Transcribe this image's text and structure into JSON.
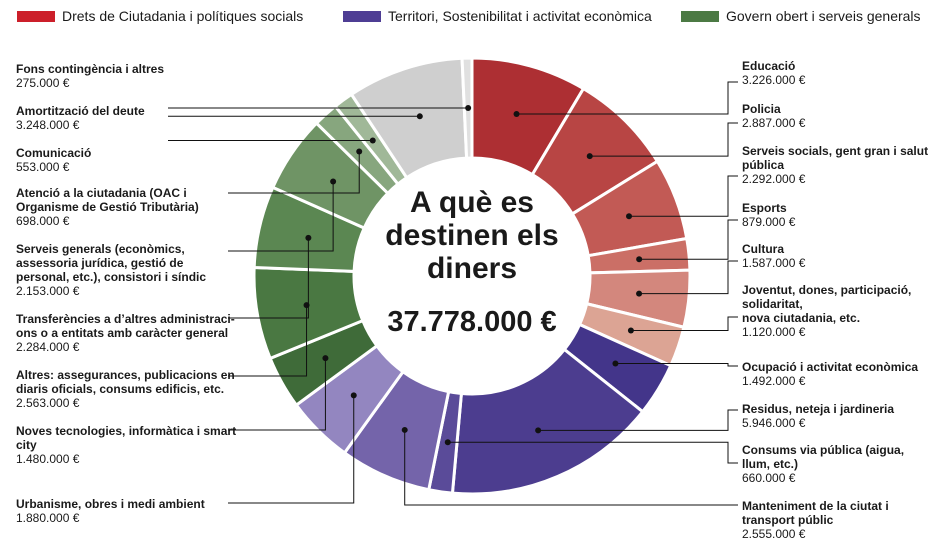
{
  "legend": [
    {
      "label": "Drets de Ciutadania i polítiques socials",
      "color": "#cc1f2a"
    },
    {
      "label": "Territori, Sostenibilitat i activitat econòmica",
      "color": "#4e3d94"
    },
    {
      "label": "Govern obert i serveis generals",
      "color": "#4c7a44"
    }
  ],
  "center": {
    "title_lines": [
      "A què es",
      "destinen els",
      "diners"
    ],
    "total": "37.778.000 €"
  },
  "chart_data": {
    "type": "pie",
    "variant": "donut",
    "unit": "€",
    "total": "37.778.000 €",
    "groups": [
      "Drets de Ciutadania i polítiques socials",
      "Territori, Sostenibilitat i activitat econòmica",
      "Govern obert i serveis generals"
    ],
    "slices": [
      {
        "name": "Educació",
        "label_lines": [
          "Educació"
        ],
        "value": 3226000,
        "value_label": "3.226.000 €",
        "group": 0,
        "color": "#ad2f33"
      },
      {
        "name": "Policia",
        "label_lines": [
          "Policia"
        ],
        "value": 2887000,
        "value_label": "2.887.000 €",
        "group": 0,
        "color": "#b84544"
      },
      {
        "name": "Serveis socials, gent gran i salut pública",
        "label_lines": [
          "Serveis socials, gent gran i salut",
          "pública"
        ],
        "value": 2292000,
        "value_label": "2.292.000 €",
        "group": 0,
        "color": "#c25a55"
      },
      {
        "name": "Esports",
        "label_lines": [
          "Esports"
        ],
        "value": 879000,
        "value_label": "879.000 €",
        "group": 0,
        "color": "#cb6f66"
      },
      {
        "name": "Cultura",
        "label_lines": [
          "Cultura"
        ],
        "value": 1587000,
        "value_label": "1.587.000 €",
        "group": 0,
        "color": "#d3877d"
      },
      {
        "name": "Joventut, dones, participació, solidaritat, nova ciutadania, etc.",
        "label_lines": [
          "Joventut, dones, participació,",
          "solidaritat,",
          "nova ciutadania, etc."
        ],
        "value": 1120000,
        "value_label": "1.120.000 €",
        "group": 0,
        "color": "#dca494"
      },
      {
        "name": "Ocupació i activitat econòmica",
        "label_lines": [
          "Ocupació i activitat econòmica"
        ],
        "value": 1492000,
        "value_label": "1.492.000 €",
        "group": 1,
        "color": "#43358a"
      },
      {
        "name": "Residus, neteja i jardineria",
        "label_lines": [
          "Residus, neteja i jardineria"
        ],
        "value": 5946000,
        "value_label": "5.946.000 €",
        "group": 1,
        "color": "#4c3d8f"
      },
      {
        "name": "Consums via pública (aigua, llum, etc.)",
        "label_lines": [
          "Consums via pública (aigua,",
          "llum, etc.)"
        ],
        "value": 660000,
        "value_label": "660.000 €",
        "group": 1,
        "color": "#5a4b99"
      },
      {
        "name": "Manteniment de la ciutat i transport públic",
        "label_lines": [
          "Manteniment de la ciutat i",
          "transport públic"
        ],
        "value": 2555000,
        "value_label": "2.555.000 €",
        "group": 1,
        "color": "#7464aa"
      },
      {
        "name": "Urbanisme, obres i medi ambient",
        "label_lines": [
          "Urbanisme, obres i medi ambient"
        ],
        "value": 1880000,
        "value_label": "1.880.000 €",
        "group": 1,
        "color": "#9386c0"
      },
      {
        "name": "Noves tecnologies, informàtica i smart city",
        "label_lines": [
          "Noves tecnologies, informàtica i smart",
          "city"
        ],
        "value": 1480000,
        "value_label": "1.480.000 €",
        "group": 2,
        "color": "#3f6b39"
      },
      {
        "name": "Altres: assegurances, publicacions en diaris oficials, consums edificis, etc.",
        "label_lines": [
          "Altres: assegurances, publicacions en",
          "diaris oficials, consums edificis, etc."
        ],
        "value": 2563000,
        "value_label": "2.563.000 €",
        "group": 2,
        "color": "#4a7842"
      },
      {
        "name": "Transferències a d'altres administracions o a entitats amb caràcter general",
        "label_lines": [
          "Transferències a d’altres administraci-",
          "ons o a entitats amb caràcter general"
        ],
        "value": 2284000,
        "value_label": "2.284.000 €",
        "group": 2,
        "color": "#5b8752"
      },
      {
        "name": "Serveis generals (econòmics, assessoria jurídica, gestió de personal, etc.), consistori i síndic",
        "label_lines": [
          "Serveis generals (econòmics,",
          "assessoria jurídica, gestió de",
          "personal, etc.), consistori i síndic"
        ],
        "value": 2153000,
        "value_label": "2.153.000 €",
        "group": 2,
        "color": "#6f9465"
      },
      {
        "name": "Atenció a la ciutadania (OAC i Organisme de Gestió Tributària)",
        "label_lines": [
          "Atenció a la ciutadania (OAC i",
          "Organisme de Gestió Tributària)"
        ],
        "value": 698000,
        "value_label": "698.000 €",
        "group": 2,
        "color": "#87a67e"
      },
      {
        "name": "Comunicació",
        "label_lines": [
          "Comunicació"
        ],
        "value": 553000,
        "value_label": "553.000 €",
        "group": 2,
        "color": "#a0b898"
      },
      {
        "name": "Amortització del deute",
        "label_lines": [
          "Amortització del deute"
        ],
        "value": 3248000,
        "value_label": "3.248.000 €",
        "group": 2,
        "color": "#cfcfcf"
      },
      {
        "name": "Fons contingència i altres",
        "label_lines": [
          "Fons contingència i altres"
        ],
        "value": 275000,
        "value_label": "275.000 €",
        "group": 2,
        "color": "#e0e0e0"
      }
    ]
  }
}
